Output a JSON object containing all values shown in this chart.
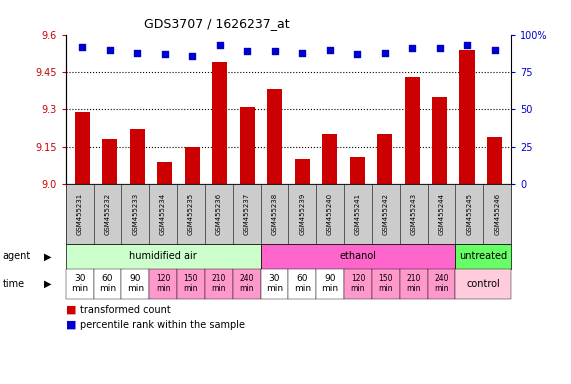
{
  "title": "GDS3707 / 1626237_at",
  "samples": [
    "GSM455231",
    "GSM455232",
    "GSM455233",
    "GSM455234",
    "GSM455235",
    "GSM455236",
    "GSM455237",
    "GSM455238",
    "GSM455239",
    "GSM455240",
    "GSM455241",
    "GSM455242",
    "GSM455243",
    "GSM455244",
    "GSM455245",
    "GSM455246"
  ],
  "transformed_count": [
    9.29,
    9.18,
    9.22,
    9.09,
    9.15,
    9.49,
    9.31,
    9.38,
    9.1,
    9.2,
    9.11,
    9.2,
    9.43,
    9.35,
    9.54,
    9.19
  ],
  "percentile_rank": [
    92,
    90,
    88,
    87,
    86,
    93,
    89,
    89,
    88,
    90,
    87,
    88,
    91,
    91,
    93,
    90
  ],
  "ylim_left": [
    9.0,
    9.6
  ],
  "ylim_right": [
    0,
    100
  ],
  "yticks_left": [
    9.0,
    9.15,
    9.3,
    9.45,
    9.6
  ],
  "yticks_right": [
    0,
    25,
    50,
    75,
    100
  ],
  "dotted_lines": [
    9.15,
    9.3,
    9.45
  ],
  "bar_color": "#cc0000",
  "dot_color": "#0000cc",
  "agent_groups": [
    {
      "start": 0,
      "end": 6,
      "color": "#ccffcc",
      "label": "humidified air"
    },
    {
      "start": 7,
      "end": 13,
      "color": "#ff66cc",
      "label": "ethanol"
    },
    {
      "start": 14,
      "end": 15,
      "color": "#66ff66",
      "label": "untreated"
    }
  ],
  "time_labels_ha": [
    "30\nmin",
    "60\nmin",
    "90\nmin",
    "120\nmin",
    "150\nmin",
    "210\nmin",
    "240\nmin"
  ],
  "time_labels_eth": [
    "30\nmin",
    "60\nmin",
    "90\nmin",
    "120\nmin",
    "150\nmin",
    "210\nmin",
    "240\nmin"
  ],
  "time_white_bg_indices": [
    0,
    1,
    2,
    7,
    8,
    9
  ],
  "time_pink_bg_indices": [
    3,
    4,
    5,
    6,
    10,
    11,
    12,
    13
  ],
  "time_pink_color": "#ff99cc",
  "time_control_color": "#ffccdd",
  "control_label": "control",
  "bar_legend_label": "transformed count",
  "dot_legend_label": "percentile rank within the sample",
  "header_bg": "#cccccc",
  "left_color": "#cc0000",
  "right_color": "#0000cc"
}
